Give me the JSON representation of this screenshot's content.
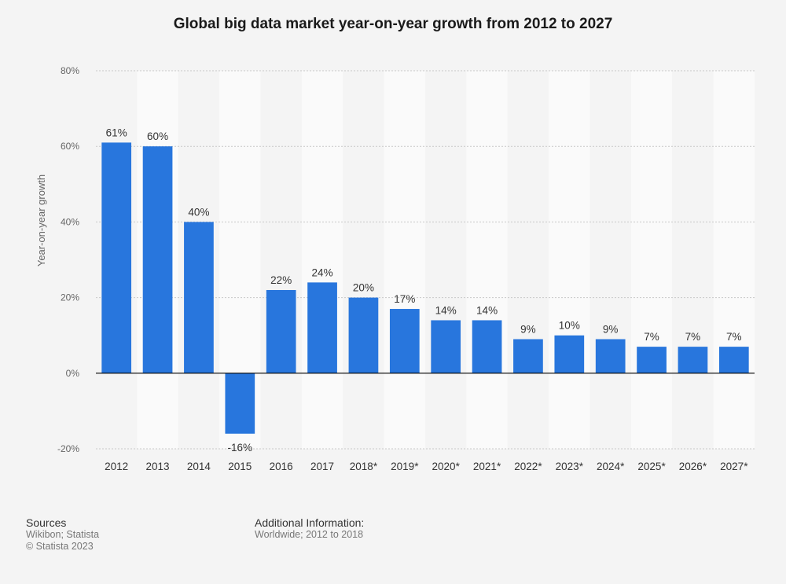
{
  "chart_data": {
    "type": "bar",
    "title": "Global big data market year-on-year growth from 2012 to 2027",
    "xlabel": "",
    "ylabel": "Year-on-year growth",
    "ylim": [
      -20,
      80
    ],
    "yticks": [
      -20,
      0,
      20,
      40,
      60,
      80
    ],
    "ytick_labels": [
      "-20%",
      "0%",
      "20%",
      "40%",
      "60%",
      "80%"
    ],
    "grid": true,
    "categories": [
      "2012",
      "2013",
      "2014",
      "2015",
      "2016",
      "2017",
      "2018*",
      "2019*",
      "2020*",
      "2021*",
      "2022*",
      "2023*",
      "2024*",
      "2025*",
      "2026*",
      "2027*"
    ],
    "values": [
      61,
      60,
      40,
      -16,
      22,
      24,
      20,
      17,
      14,
      14,
      9,
      10,
      9,
      7,
      7,
      7
    ],
    "value_labels": [
      "61%",
      "60%",
      "40%",
      "-16%",
      "22%",
      "24%",
      "20%",
      "17%",
      "14%",
      "14%",
      "9%",
      "10%",
      "9%",
      "7%",
      "7%",
      "7%"
    ],
    "bar_color": "#2876dd"
  },
  "footer": {
    "sources_heading": "Sources",
    "sources_line1": "Wikibon; Statista",
    "sources_line2": "© Statista 2023",
    "additional_heading": "Additional Information:",
    "additional_line1": "Worldwide; 2012 to 2018"
  }
}
